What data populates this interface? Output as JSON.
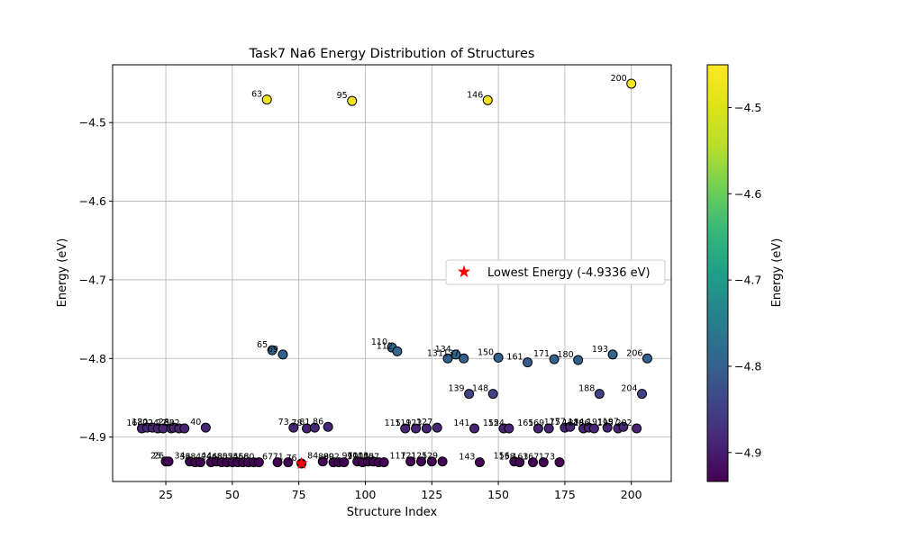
{
  "chart_data": {
    "type": "scatter",
    "title": "Task7 Na6 Energy Distribution of Structures",
    "xlabel": "Structure Index",
    "ylabel": "Energy (eV)",
    "xlim": [
      5,
      215
    ],
    "ylim": [
      -4.9565,
      -4.4265
    ],
    "xticks": [
      25,
      50,
      75,
      100,
      125,
      150,
      175,
      200
    ],
    "yticks": [
      -4.9,
      -4.8,
      -4.7,
      -4.6,
      -4.5
    ],
    "grid": true,
    "colormap": "viridis",
    "colorbar": {
      "label": "Energy (eV)",
      "range": [
        -4.9336,
        -4.4505
      ],
      "ticks": [
        -4.9,
        -4.8,
        -4.7,
        -4.6,
        -4.5
      ]
    },
    "legend": {
      "label": "Lowest Energy (-4.9336 eV)",
      "placement": "center-right"
    },
    "lowest": {
      "x": 76,
      "y": -4.9336,
      "marker": "red-star"
    },
    "points": [
      {
        "x": 16,
        "y": -4.889,
        "label": "16"
      },
      {
        "x": 18,
        "y": -4.888,
        "label": "18"
      },
      {
        "x": 20,
        "y": -4.888,
        "label": "20"
      },
      {
        "x": 22,
        "y": -4.889,
        "label": "22"
      },
      {
        "x": 24,
        "y": -4.889,
        "label": "24"
      },
      {
        "x": 25,
        "y": -4.931,
        "label": "25"
      },
      {
        "x": 26,
        "y": -4.931,
        "label": "26"
      },
      {
        "x": 27,
        "y": -4.889,
        "label": "27"
      },
      {
        "x": 28,
        "y": -4.888,
        "label": "28"
      },
      {
        "x": 30,
        "y": -4.889,
        "label": "30"
      },
      {
        "x": 32,
        "y": -4.889,
        "label": "32"
      },
      {
        "x": 34,
        "y": -4.931,
        "label": "34"
      },
      {
        "x": 36,
        "y": -4.932,
        "label": "36"
      },
      {
        "x": 38,
        "y": -4.932,
        "label": "38"
      },
      {
        "x": 40,
        "y": -4.888,
        "label": "40"
      },
      {
        "x": 42,
        "y": -4.932,
        "label": "42"
      },
      {
        "x": 44,
        "y": -4.931,
        "label": "44"
      },
      {
        "x": 46,
        "y": -4.932,
        "label": "46"
      },
      {
        "x": 48,
        "y": -4.932,
        "label": "48"
      },
      {
        "x": 50,
        "y": -4.932,
        "label": "50"
      },
      {
        "x": 52,
        "y": -4.932,
        "label": "52"
      },
      {
        "x": 54,
        "y": -4.932,
        "label": "54"
      },
      {
        "x": 56,
        "y": -4.932,
        "label": "56"
      },
      {
        "x": 58,
        "y": -4.932,
        "label": "58"
      },
      {
        "x": 60,
        "y": -4.932,
        "label": "60"
      },
      {
        "x": 63,
        "y": -4.4707,
        "label": "63"
      },
      {
        "x": 65,
        "y": -4.7895,
        "label": "65"
      },
      {
        "x": 67,
        "y": -4.932,
        "label": "67"
      },
      {
        "x": 69,
        "y": -4.795,
        "label": "69"
      },
      {
        "x": 71,
        "y": -4.932,
        "label": "71"
      },
      {
        "x": 73,
        "y": -4.888,
        "label": "73"
      },
      {
        "x": 76,
        "y": -4.9336,
        "label": "76"
      },
      {
        "x": 78,
        "y": -4.889,
        "label": "78"
      },
      {
        "x": 81,
        "y": -4.888,
        "label": "81"
      },
      {
        "x": 84,
        "y": -4.931,
        "label": "84"
      },
      {
        "x": 86,
        "y": -4.887,
        "label": "86"
      },
      {
        "x": 88,
        "y": -4.932,
        "label": "88"
      },
      {
        "x": 90,
        "y": -4.932,
        "label": "90"
      },
      {
        "x": 92,
        "y": -4.932,
        "label": "92"
      },
      {
        "x": 95,
        "y": -4.4725,
        "label": "95"
      },
      {
        "x": 97,
        "y": -4.931,
        "label": "97"
      },
      {
        "x": 99,
        "y": -4.932,
        "label": "99"
      },
      {
        "x": 101,
        "y": -4.931,
        "label": "101"
      },
      {
        "x": 103,
        "y": -4.931,
        "label": "103"
      },
      {
        "x": 105,
        "y": -4.932,
        "label": "105"
      },
      {
        "x": 107,
        "y": -4.932,
        "label": "107"
      },
      {
        "x": 110,
        "y": -4.786,
        "label": "110"
      },
      {
        "x": 112,
        "y": -4.791,
        "label": "112"
      },
      {
        "x": 115,
        "y": -4.889,
        "label": "115"
      },
      {
        "x": 117,
        "y": -4.931,
        "label": "117"
      },
      {
        "x": 119,
        "y": -4.889,
        "label": "119"
      },
      {
        "x": 121,
        "y": -4.931,
        "label": "121"
      },
      {
        "x": 123,
        "y": -4.889,
        "label": "123"
      },
      {
        "x": 125,
        "y": -4.931,
        "label": "125"
      },
      {
        "x": 127,
        "y": -4.888,
        "label": "127"
      },
      {
        "x": 129,
        "y": -4.931,
        "label": "129"
      },
      {
        "x": 131,
        "y": -4.8,
        "label": "131"
      },
      {
        "x": 134,
        "y": -4.795,
        "label": "134"
      },
      {
        "x": 137,
        "y": -4.8,
        "label": "137"
      },
      {
        "x": 139,
        "y": -4.845,
        "label": "139"
      },
      {
        "x": 141,
        "y": -4.889,
        "label": "141"
      },
      {
        "x": 143,
        "y": -4.932,
        "label": "143"
      },
      {
        "x": 146,
        "y": -4.4715,
        "label": "146"
      },
      {
        "x": 148,
        "y": -4.845,
        "label": "148"
      },
      {
        "x": 150,
        "y": -4.799,
        "label": "150"
      },
      {
        "x": 152,
        "y": -4.889,
        "label": "152"
      },
      {
        "x": 154,
        "y": -4.889,
        "label": "154"
      },
      {
        "x": 156,
        "y": -4.931,
        "label": "156"
      },
      {
        "x": 158,
        "y": -4.932,
        "label": "158"
      },
      {
        "x": 161,
        "y": -4.805,
        "label": "161"
      },
      {
        "x": 163,
        "y": -4.932,
        "label": "163"
      },
      {
        "x": 165,
        "y": -4.889,
        "label": "165"
      },
      {
        "x": 167,
        "y": -4.932,
        "label": "167"
      },
      {
        "x": 169,
        "y": -4.889,
        "label": "169"
      },
      {
        "x": 171,
        "y": -4.801,
        "label": "171"
      },
      {
        "x": 173,
        "y": -4.932,
        "label": "173"
      },
      {
        "x": 175,
        "y": -4.888,
        "label": "175"
      },
      {
        "x": 177,
        "y": -4.887,
        "label": "177"
      },
      {
        "x": 180,
        "y": -4.802,
        "label": "180"
      },
      {
        "x": 182,
        "y": -4.889,
        "label": "182"
      },
      {
        "x": 184,
        "y": -4.888,
        "label": "184"
      },
      {
        "x": 186,
        "y": -4.889,
        "label": "186"
      },
      {
        "x": 188,
        "y": -4.845,
        "label": "188"
      },
      {
        "x": 191,
        "y": -4.888,
        "label": "191"
      },
      {
        "x": 193,
        "y": -4.795,
        "label": "193"
      },
      {
        "x": 195,
        "y": -4.889,
        "label": "195"
      },
      {
        "x": 197,
        "y": -4.887,
        "label": "197"
      },
      {
        "x": 200,
        "y": -4.4505,
        "label": "200"
      },
      {
        "x": 202,
        "y": -4.889,
        "label": "202"
      },
      {
        "x": 204,
        "y": -4.845,
        "label": "204"
      },
      {
        "x": 206,
        "y": -4.8,
        "label": "206"
      }
    ]
  }
}
